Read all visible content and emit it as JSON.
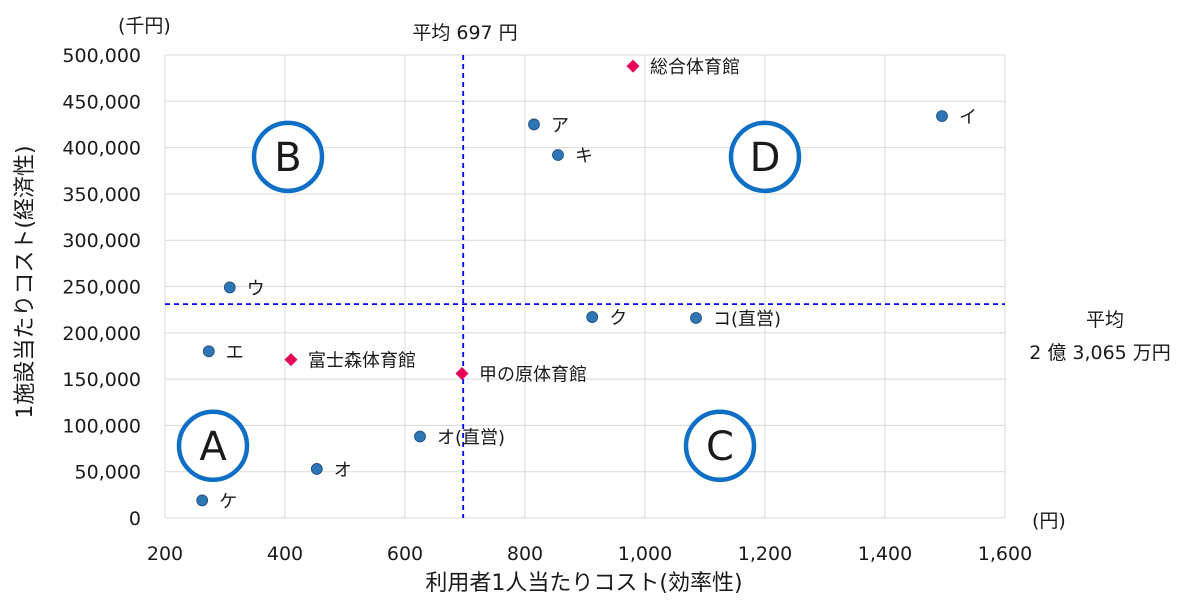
{
  "chart_data": {
    "type": "scatter",
    "title": "",
    "xlabel": "利用者1人当たりコスト(効率性)",
    "ylabel": "1施設当たりコスト(経済性)",
    "x_unit": "(円)",
    "y_unit": "(千円)",
    "xlim": [
      200,
      1600
    ],
    "ylim": [
      0,
      500000
    ],
    "x_ticks": [
      {
        "value": 200,
        "label": "200"
      },
      {
        "value": 400,
        "label": "400"
      },
      {
        "value": 600,
        "label": "600"
      },
      {
        "value": 800,
        "label": "800"
      },
      {
        "value": 1000,
        "label": "1,000"
      },
      {
        "value": 1200,
        "label": "1,200"
      },
      {
        "value": 1400,
        "label": "1,400"
      },
      {
        "value": 1600,
        "label": "1,600"
      }
    ],
    "y_ticks": [
      {
        "value": 0,
        "label": "0"
      },
      {
        "value": 50000,
        "label": "50,000"
      },
      {
        "value": 100000,
        "label": "100,000"
      },
      {
        "value": 150000,
        "label": "150,000"
      },
      {
        "value": 200000,
        "label": "200,000"
      },
      {
        "value": 250000,
        "label": "250,000"
      },
      {
        "value": 300000,
        "label": "300,000"
      },
      {
        "value": 350000,
        "label": "350,000"
      },
      {
        "value": 400000,
        "label": "400,000"
      },
      {
        "value": 450000,
        "label": "450,000"
      },
      {
        "value": 500000,
        "label": "500,000"
      }
    ],
    "grid": true,
    "colors": {
      "circle": "#2e75b6",
      "diamond": "#e8005a",
      "avg_line": "#0000ff",
      "quadrant": "#0f6fc6",
      "grid": "#d9d9d9"
    },
    "series": [
      {
        "marker": "circle",
        "points": [
          {
            "x": 815,
            "y": 425000,
            "label": "ア"
          },
          {
            "x": 1495,
            "y": 434000,
            "label": "イ"
          },
          {
            "x": 308,
            "y": 249000,
            "label": "ウ"
          },
          {
            "x": 273,
            "y": 180000,
            "label": "エ"
          },
          {
            "x": 453,
            "y": 53000,
            "label": "オ"
          },
          {
            "x": 625,
            "y": 88000,
            "label": "オ(直営)"
          },
          {
            "x": 855,
            "y": 392000,
            "label": "キ"
          },
          {
            "x": 912,
            "y": 217000,
            "label": "ク"
          },
          {
            "x": 262,
            "y": 19000,
            "label": "ケ"
          },
          {
            "x": 1085,
            "y": 216000,
            "label": "コ(直営)"
          }
        ]
      },
      {
        "marker": "diamond",
        "points": [
          {
            "x": 980,
            "y": 488000,
            "label": "総合体育館"
          },
          {
            "x": 410,
            "y": 171000,
            "label": "富士森体育館"
          },
          {
            "x": 695,
            "y": 156000,
            "label": "甲の原体育館"
          }
        ]
      }
    ],
    "average_lines": {
      "x": {
        "value": 697,
        "label": "平均 697 円"
      },
      "y": {
        "value": 231000,
        "label_line1": "平均",
        "label_line2": "2 億 3,065 万円"
      }
    },
    "quadrants": [
      {
        "label": "A",
        "x": 280,
        "y": 78000
      },
      {
        "label": "B",
        "x": 405,
        "y": 390000
      },
      {
        "label": "C",
        "x": 1125,
        "y": 78000
      },
      {
        "label": "D",
        "x": 1200,
        "y": 390000
      }
    ]
  }
}
